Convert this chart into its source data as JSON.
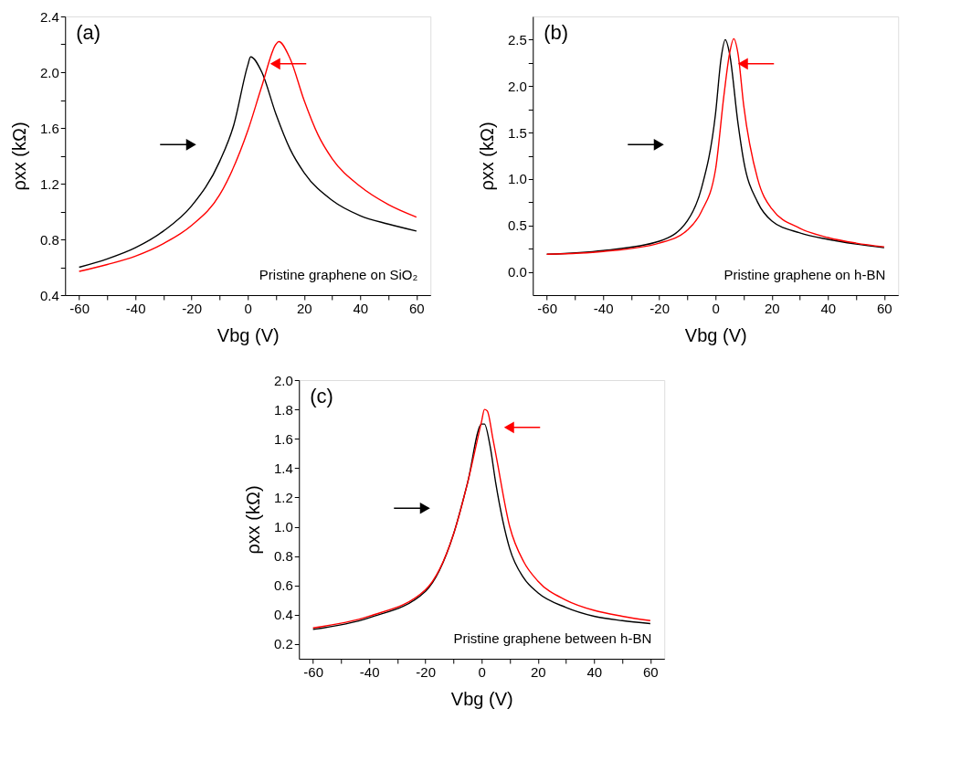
{
  "chart_data": [
    {
      "type": "line",
      "xlabel": "Vbg (V)",
      "ylabel": "ρxx (kΩ)",
      "annotations": [
        "(a)",
        "Pristine graphene on SiO₂"
      ],
      "xlim": [
        -65,
        65
      ],
      "ylim": [
        0.4,
        2.4
      ],
      "xticks": [
        -60,
        {
          "value": -50,
          "label": null
        },
        -40,
        {
          "value": -30,
          "label": null
        },
        -20,
        {
          "value": -10,
          "label": null
        },
        0,
        {
          "value": 10,
          "label": null
        },
        20,
        {
          "value": 30,
          "label": null
        },
        40,
        {
          "value": 50,
          "label": null
        },
        60
      ],
      "yticks": [
        0.4,
        {
          "value": 0.6,
          "label": null
        },
        0.8,
        {
          "value": 1.0,
          "label": null
        },
        1.2,
        {
          "value": 1.4,
          "label": null
        },
        1.6,
        {
          "value": 1.8,
          "label": null
        },
        {
          "value": 2.0,
          "label": "2.0"
        },
        {
          "value": 2.2,
          "label": null
        },
        2.4
      ],
      "grid": false,
      "legend": false,
      "marker": "none",
      "line_style": "solid",
      "series": [
        {
          "color": "#000000",
          "x": [
            -60,
            -50,
            -40,
            -30,
            -20,
            -10,
            -5,
            0,
            1,
            5,
            10,
            15,
            20,
            30,
            40,
            50,
            60
          ],
          "values": [
            0.6,
            0.66,
            0.74,
            0.86,
            1.04,
            1.36,
            1.62,
            2.05,
            2.11,
            2.0,
            1.7,
            1.45,
            1.28,
            1.08,
            0.97,
            0.91,
            0.86
          ]
        },
        {
          "color": "#ff0000",
          "x": [
            -60,
            -50,
            -40,
            -30,
            -20,
            -10,
            0,
            5,
            10,
            11,
            15,
            20,
            25,
            30,
            40,
            50,
            60
          ],
          "values": [
            0.57,
            0.62,
            0.68,
            0.77,
            0.9,
            1.12,
            1.58,
            1.9,
            2.2,
            2.22,
            2.1,
            1.8,
            1.55,
            1.38,
            1.18,
            1.05,
            0.96
          ]
        }
      ]
    },
    {
      "type": "line",
      "xlabel": "Vbg (V)",
      "ylabel": "ρxx (kΩ)",
      "annotations": [
        "(b)",
        "Pristine graphene on h-BN"
      ],
      "xlim": [
        -65,
        65
      ],
      "ylim": [
        -0.25,
        2.75
      ],
      "xticks": [
        -60,
        {
          "value": -50,
          "label": null
        },
        -40,
        {
          "value": -30,
          "label": null
        },
        -20,
        {
          "value": -10,
          "label": null
        },
        0,
        {
          "value": 10,
          "label": null
        },
        20,
        {
          "value": 30,
          "label": null
        },
        40,
        {
          "value": 50,
          "label": null
        },
        60
      ],
      "yticks": [
        {
          "value": 0.0,
          "label": "0.0"
        },
        {
          "value": 0.25,
          "label": null
        },
        {
          "value": 0.5,
          "label": "0.5"
        },
        {
          "value": 0.75,
          "label": null
        },
        {
          "value": 1.0,
          "label": "1.0"
        },
        {
          "value": 1.25,
          "label": null
        },
        {
          "value": 1.5,
          "label": "1.5"
        },
        {
          "value": 1.75,
          "label": null
        },
        {
          "value": 2.0,
          "label": "2.0"
        },
        {
          "value": 2.25,
          "label": null
        },
        {
          "value": 2.5,
          "label": "2.5"
        }
      ],
      "grid": false,
      "legend": false,
      "marker": "none",
      "line_style": "solid",
      "series": [
        {
          "color": "#000000",
          "x": [
            -60,
            -40,
            -20,
            -10,
            -5,
            0,
            2,
            3.5,
            5,
            8,
            10,
            15,
            20,
            30,
            40,
            50,
            60
          ],
          "values": [
            0.19,
            0.23,
            0.33,
            0.55,
            0.9,
            1.7,
            2.3,
            2.5,
            2.35,
            1.6,
            1.2,
            0.75,
            0.55,
            0.42,
            0.35,
            0.3,
            0.26
          ]
        },
        {
          "color": "#ff0000",
          "x": [
            -60,
            -40,
            -20,
            -10,
            -5,
            0,
            3,
            5,
            6.5,
            8,
            10,
            15,
            20,
            30,
            40,
            50,
            60
          ],
          "values": [
            0.19,
            0.22,
            0.31,
            0.45,
            0.65,
            1.1,
            1.9,
            2.35,
            2.51,
            2.35,
            1.8,
            1.0,
            0.68,
            0.47,
            0.37,
            0.31,
            0.27
          ]
        }
      ]
    },
    {
      "type": "line",
      "xlabel": "Vbg (V)",
      "ylabel": "ρxx (kΩ)",
      "annotations": [
        "(c)",
        "Pristine graphene between h-BN"
      ],
      "xlim": [
        -65,
        65
      ],
      "ylim": [
        0.1,
        2.0
      ],
      "xticks": [
        -60,
        {
          "value": -50,
          "label": null
        },
        -40,
        {
          "value": -30,
          "label": null
        },
        -20,
        {
          "value": -10,
          "label": null
        },
        0,
        {
          "value": 10,
          "label": null
        },
        20,
        {
          "value": 30,
          "label": null
        },
        40,
        {
          "value": 50,
          "label": null
        },
        60
      ],
      "yticks": [
        0.2,
        0.4,
        0.6,
        0.8,
        {
          "value": 1.0,
          "label": "1.0"
        },
        1.2,
        1.4,
        1.6,
        1.8,
        {
          "value": 2.0,
          "label": "2.0"
        }
      ],
      "grid": false,
      "legend": false,
      "marker": "none",
      "line_style": "solid",
      "series": [
        {
          "color": "#000000",
          "x": [
            -60,
            -40,
            -20,
            -10,
            -5,
            0,
            1,
            3,
            5,
            10,
            15,
            20,
            30,
            40,
            50,
            60
          ],
          "values": [
            0.3,
            0.38,
            0.56,
            0.95,
            1.3,
            1.7,
            1.7,
            1.55,
            1.3,
            0.85,
            0.65,
            0.55,
            0.45,
            0.39,
            0.36,
            0.34
          ]
        },
        {
          "color": "#ff0000",
          "x": [
            -60,
            -40,
            -20,
            -10,
            -5,
            0,
            1,
            2,
            4,
            5,
            10,
            15,
            20,
            30,
            40,
            50,
            60
          ],
          "values": [
            0.31,
            0.39,
            0.57,
            0.95,
            1.3,
            1.72,
            1.8,
            1.79,
            1.6,
            1.5,
            1.0,
            0.76,
            0.63,
            0.5,
            0.43,
            0.39,
            0.36
          ]
        }
      ]
    }
  ]
}
